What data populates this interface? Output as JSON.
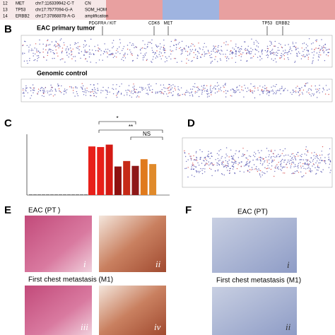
{
  "table": {
    "rows": [
      [
        "12",
        "MET",
        "chr7:116339942-C-T",
        "CN"
      ],
      [
        "13",
        "TP53",
        "chr17:7577094-G-A",
        "SOM_HOM"
      ],
      [
        "14",
        "ERBB2",
        "chr17:37868878-A-G",
        "amplification"
      ]
    ]
  },
  "panel_b": {
    "label": "B",
    "title": "EAC primary tumor",
    "genes": [
      "PDGFRA / KIT",
      "CDK6",
      "MET",
      "TP53",
      "ERBB2"
    ],
    "control_title": "Genomic control"
  },
  "panel_c": {
    "label": "C",
    "ylim": [
      0,
      100
    ],
    "values": [
      1,
      1,
      1,
      1,
      1,
      1,
      1,
      1,
      1,
      1,
      1,
      1,
      1,
      1,
      80,
      79,
      83,
      47,
      56,
      48,
      59,
      51
    ],
    "colors": [
      "#555",
      "#555",
      "#555",
      "#555",
      "#555",
      "#555",
      "#555",
      "#555",
      "#555",
      "#555",
      "#555",
      "#555",
      "#555",
      "#555",
      "#e8201a",
      "#e8201a",
      "#d41a14",
      "#8e1010",
      "#c62a18",
      "#8e1818",
      "#e07a1c",
      "#e08a2a"
    ],
    "significance": [
      "*",
      "**",
      "NS"
    ]
  },
  "panel_d": {
    "label": "D"
  },
  "panel_e": {
    "label": "E",
    "top": "EAC (PT )",
    "bottom": "First chest metastasis (M1)",
    "images": [
      "i",
      "ii",
      "iii",
      "iv"
    ]
  },
  "panel_f": {
    "label": "F",
    "top": "EAC (PT)",
    "bottom": "First chest metastasis (M1)",
    "images": [
      "i",
      "ii"
    ]
  }
}
